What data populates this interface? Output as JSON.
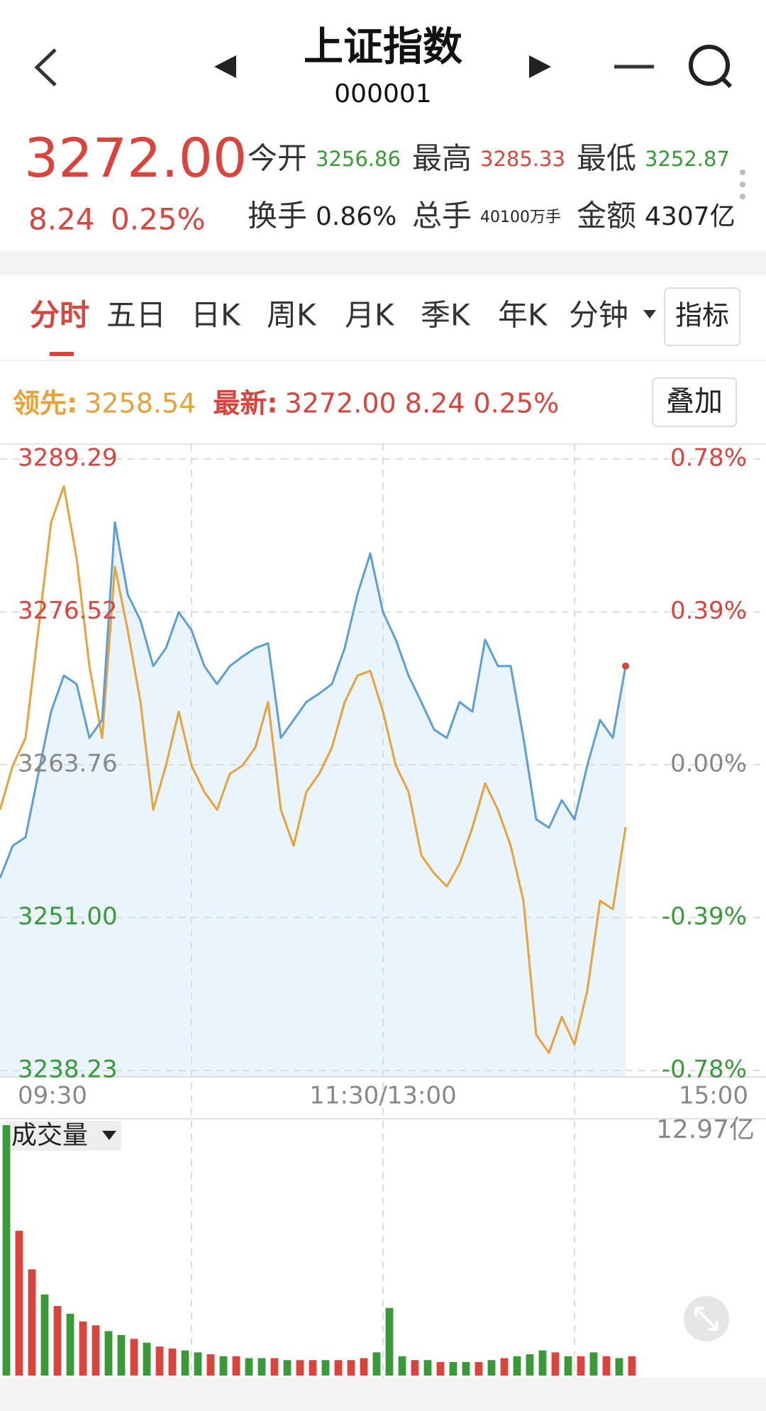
{
  "header": {
    "title": "上证指数",
    "code": "000001"
  },
  "quote": {
    "price": "3272.00",
    "change": "8.24",
    "change_pct": "0.25%",
    "stats": [
      {
        "label": "今开",
        "value": "3256.86",
        "color": "#3a9a3a"
      },
      {
        "label": "最高",
        "value": "3285.33",
        "color": "#d9453d"
      },
      {
        "label": "最低",
        "value": "3252.87",
        "color": "#3a9a3a"
      },
      {
        "label": "换手",
        "value": "0.86%",
        "color": "#222222"
      },
      {
        "label": "总手",
        "value": "40100万手",
        "color": "#222222"
      },
      {
        "label": "金额",
        "value": "4307亿",
        "color": "#222222"
      }
    ]
  },
  "tabs": [
    "分时",
    "五日",
    "日K",
    "周K",
    "月K",
    "季K",
    "年K",
    "分钟"
  ],
  "indicator_button": "指标",
  "overlay_button": "叠加",
  "chart_data": [
    {
      "type": "line",
      "x": [
        0,
        4,
        8,
        12,
        16,
        20,
        24,
        28,
        32,
        36,
        40,
        44,
        48,
        52,
        56,
        60,
        64,
        68,
        72,
        76,
        80,
        84,
        88,
        92,
        96,
        100,
        104,
        108,
        112,
        116,
        120,
        124,
        128,
        132,
        136,
        140,
        144,
        148,
        152,
        156,
        160,
        164,
        168,
        172,
        176,
        180,
        184,
        188,
        192,
        196
      ],
      "series": [
        {
          "name": "领先:",
          "color": "#e8a23a",
          "label_color": "#e8a23a",
          "value_label": "3258.54",
          "values": [
            3260.0,
            3263.7,
            3266.0,
            3275.0,
            3284.0,
            3287.0,
            3281.0,
            3272.0,
            3266.0,
            3280.3,
            3275.0,
            3269.0,
            3260.0,
            3263.7,
            3268.2,
            3263.7,
            3261.5,
            3260.0,
            3263.0,
            3263.7,
            3265.2,
            3269.0,
            3260.0,
            3257.0,
            3261.5,
            3263.0,
            3265.2,
            3269.0,
            3271.2,
            3271.6,
            3268.2,
            3263.7,
            3261.5,
            3256.2,
            3254.7,
            3253.6,
            3255.5,
            3258.5,
            3262.2,
            3260.0,
            3257.0,
            3252.4,
            3241.2,
            3239.7,
            3242.7,
            3240.4,
            3244.9,
            3252.4,
            3251.7,
            3258.54
          ]
        },
        {
          "name": "最新:",
          "color": "#5b9fd6",
          "label_color": "#d9453d",
          "fill": "#eaf4fd",
          "value_label": "3272.00 8.24 0.25%",
          "values": [
            3254.3,
            3257.0,
            3257.7,
            3263.0,
            3268.2,
            3271.2,
            3270.5,
            3266.0,
            3267.5,
            3284.0,
            3278.0,
            3275.8,
            3272.0,
            3273.5,
            3276.5,
            3275.0,
            3272.0,
            3270.5,
            3272.0,
            3272.8,
            3273.5,
            3273.9,
            3266.0,
            3267.5,
            3269.0,
            3269.7,
            3270.5,
            3273.5,
            3278.0,
            3281.4,
            3276.5,
            3274.2,
            3271.2,
            3269.0,
            3266.7,
            3266.0,
            3269.0,
            3268.2,
            3274.2,
            3272.0,
            3272.0,
            3266.0,
            3259.2,
            3258.5,
            3260.8,
            3259.2,
            3263.7,
            3267.5,
            3266.0,
            3272.0
          ]
        }
      ],
      "xlim": [
        0,
        240
      ],
      "xticks": [
        {
          "value": 0,
          "label": "09:30"
        },
        {
          "value": 120,
          "label": "11:30/13:00"
        },
        {
          "value": 240,
          "label": "15:00"
        }
      ],
      "ylim": [
        3238.23,
        3289.29
      ],
      "yticks": [
        3289.29,
        3276.52,
        3263.76,
        {
          "value": 3251,
          "label": "3251.00"
        },
        3238.23
      ],
      "y2lim": [
        -0.78,
        0.78
      ],
      "y2ticks": [
        {
          "value": 0.78,
          "label": "0.78%"
        },
        {
          "value": 0.39,
          "label": "0.39%"
        },
        {
          "value": 0,
          "label": "0.00%"
        },
        {
          "value": -0.39,
          "label": "-0.39%"
        },
        {
          "value": -0.78,
          "label": "-0.78%"
        }
      ],
      "grid": true
    },
    {
      "type": "bar",
      "label": "成交量",
      "x": [
        0,
        4,
        8,
        12,
        16,
        20,
        24,
        28,
        32,
        36,
        40,
        44,
        48,
        52,
        56,
        60,
        64,
        68,
        72,
        76,
        80,
        84,
        88,
        92,
        96,
        100,
        104,
        108,
        112,
        116,
        120,
        124,
        128,
        132,
        136,
        140,
        144,
        148,
        152,
        156,
        160,
        164,
        168,
        172,
        176,
        180,
        184,
        188,
        192,
        196
      ],
      "values": [
        12.97,
        7.5,
        5.5,
        4.2,
        3.6,
        3.2,
        2.8,
        2.6,
        2.3,
        2.1,
        1.9,
        1.7,
        1.5,
        1.4,
        1.3,
        1.2,
        1.1,
        1.0,
        1.0,
        0.9,
        0.9,
        0.9,
        0.8,
        0.8,
        0.8,
        0.8,
        0.8,
        0.8,
        0.9,
        1.2,
        3.5,
        1.0,
        0.8,
        0.8,
        0.7,
        0.7,
        0.7,
        0.7,
        0.8,
        0.9,
        1.0,
        1.1,
        1.3,
        1.2,
        1.0,
        1.0,
        1.2,
        1.0,
        0.9,
        1.0
      ],
      "colors": [
        "#3a9a3a",
        "#d9453d",
        "#d9453d",
        "#3a9a3a",
        "#d9453d",
        "#3a9a3a",
        "#d9453d",
        "#d9453d",
        "#3a9a3a",
        "#3a9a3a",
        "#d9453d",
        "#3a9a3a",
        "#d9453d",
        "#d9453d",
        "#3a9a3a",
        "#3a9a3a",
        "#d9453d",
        "#3a9a3a",
        "#d9453d",
        "#3a9a3a",
        "#3a9a3a",
        "#d9453d",
        "#3a9a3a",
        "#d9453d",
        "#d9453d",
        "#3a9a3a",
        "#d9453d",
        "#d9453d",
        "#d9453d",
        "#3a9a3a",
        "#3a9a3a",
        "#3a9a3a",
        "#d9453d",
        "#3a9a3a",
        "#d9453d",
        "#3a9a3a",
        "#3a9a3a",
        "#d9453d",
        "#3a9a3a",
        "#d9453d",
        "#3a9a3a",
        "#3a9a3a",
        "#3a9a3a",
        "#d9453d",
        "#3a9a3a",
        "#d9453d",
        "#3a9a3a",
        "#d9453d",
        "#3a9a3a",
        "#d9453d"
      ],
      "xlim": [
        0,
        240
      ],
      "ylim": [
        0,
        12.97
      ],
      "yticks": [
        {
          "value": 12.97,
          "label": "12.97亿"
        }
      ]
    }
  ]
}
